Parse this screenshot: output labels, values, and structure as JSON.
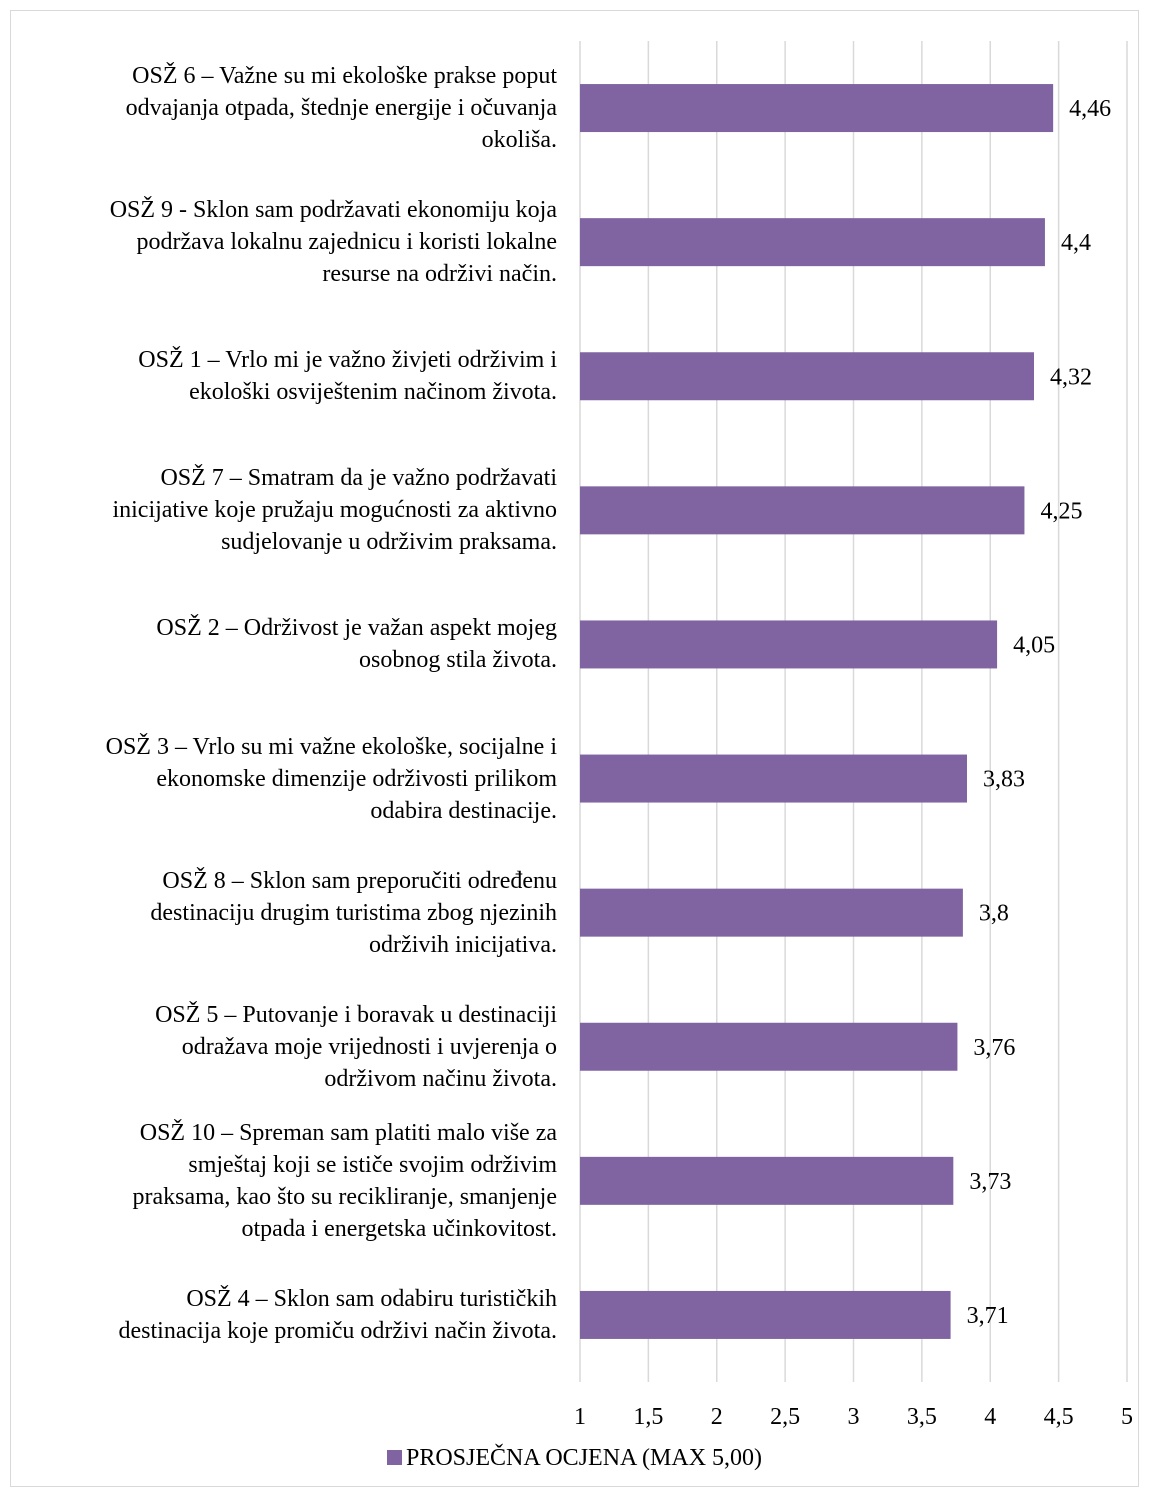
{
  "chart_data": {
    "type": "bar",
    "orientation": "horizontal",
    "categories": [
      "OSŽ 6 – Važne su mi ekološke prakse poput\nodvajanja otpada, štednje energije i očuvanja\nokoliša.",
      "OSŽ 9 - Sklon sam podržavati ekonomiju koja\npodržava lokalnu zajednicu i koristi lokalne\nresurse na održivi način.",
      "OSŽ 1 – Vrlo mi je važno živjeti održivim i\nekološki osviještenim načinom života.",
      "OSŽ 7 – Smatram da je važno podržavati\ninicijative koje pružaju mogućnosti za aktivno\nsudjelovanje u održivim praksama.",
      "OSŽ 2 – Održivost je važan aspekt mojeg\nosobnog stila života.",
      "OSŽ 3 – Vrlo su mi važne ekološke, socijalne i\nekonomske dimenzije održivosti prilikom\nodabira destinacije.",
      "OSŽ 8 – Sklon sam preporučiti određenu\ndestinaciju drugim turistima zbog njezinih\nodrživih inicijativa.",
      "OSŽ 5 – Putovanje i boravak u destinaciji\nodražava moje vrijednosti i uvjerenja o\nodrživom načinu života.",
      "OSŽ 10 – Spreman sam platiti malo više za\nsmještaj koji se ističe svojim održivim\npraksama, kao što su recikliranje, smanjenje\notpada i energetska učinkovitost.",
      "OSŽ 4 – Sklon sam odabiru turističkih\ndestinacija koje promiču održivi način života."
    ],
    "series": [
      {
        "name": "PROSJEČNA OCJENA (MAX 5,00)",
        "values": [
          4.46,
          4.4,
          4.32,
          4.25,
          4.05,
          3.83,
          3.8,
          3.76,
          3.73,
          3.71
        ],
        "data_labels": [
          "4,46",
          "4,4",
          "4,32",
          "4,25",
          "4,05",
          "3,83",
          "3,8",
          "3,76",
          "3,73",
          "3,71"
        ],
        "color": "#8064a2"
      }
    ],
    "xlim": [
      1,
      5
    ],
    "x_ticks": [
      1,
      1.5,
      2,
      2.5,
      3,
      3.5,
      4,
      4.5,
      5
    ],
    "x_tick_labels": [
      "1",
      "1,5",
      "2",
      "2,5",
      "3",
      "3,5",
      "4",
      "4,5",
      "5"
    ],
    "grid": "vertical",
    "gridline_color": "#d9d9d9",
    "legend_position": "bottom"
  }
}
